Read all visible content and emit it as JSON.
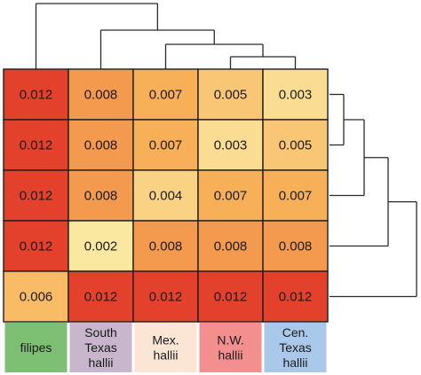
{
  "chart_data": {
    "type": "heatmap",
    "columns": [
      "filipes",
      "South Texas hallii",
      "Mex. hallii",
      "N.W. hallii",
      "Cen. Texas hallii"
    ],
    "column_labels": [
      [
        "filipes"
      ],
      [
        "South",
        "Texas",
        "hallii"
      ],
      [
        "Mex.",
        "hallii"
      ],
      [
        "N.W.",
        "hallii"
      ],
      [
        "Cen.",
        "Texas",
        "hallii"
      ]
    ],
    "column_label_colors": [
      "#7dbf73",
      "#c7b6cc",
      "#fbe6d6",
      "#f48f8f",
      "#a9c8ea"
    ],
    "values": [
      [
        "0.012",
        "0.008",
        "0.007",
        "0.005",
        "0.003"
      ],
      [
        "0.012",
        "0.008",
        "0.007",
        "0.003",
        "0.005"
      ],
      [
        "0.012",
        "0.008",
        "0.004",
        "0.007",
        "0.007"
      ],
      [
        "0.012",
        "0.002",
        "0.008",
        "0.008",
        "0.008"
      ],
      [
        "0.006",
        "0.012",
        "0.012",
        "0.012",
        "0.012"
      ]
    ],
    "color_scale": {
      "low": "#fbe8a0",
      "mid": "#f8b058",
      "high": "#e3412c"
    },
    "dendrograms": [
      "top",
      "right"
    ]
  }
}
